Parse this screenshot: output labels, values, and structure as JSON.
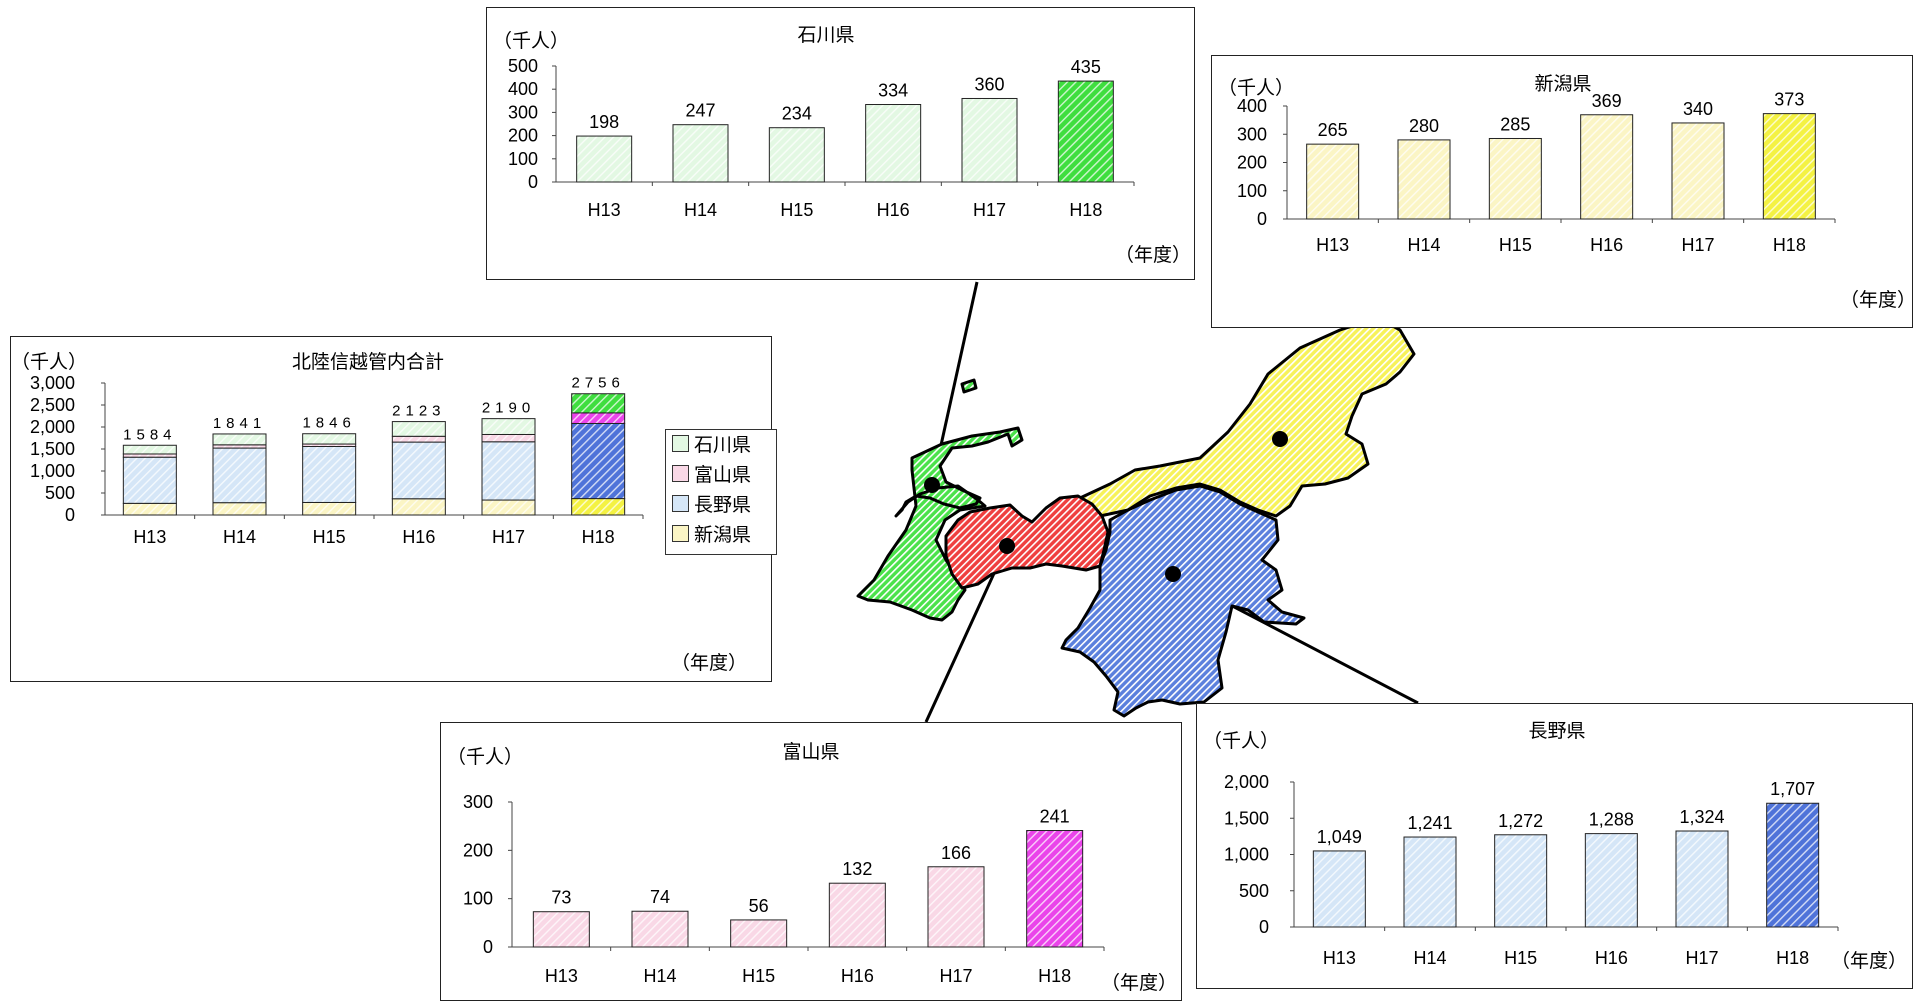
{
  "colors": {
    "ishikawa": "#47e047",
    "toyama": "#ef3f3f",
    "nagano": "#5b80dd",
    "niigata": "#f7f25a",
    "ishikawa_light": "#e3f8e3",
    "toyama_light": "#f9d8e6",
    "nagano_light": "#d5e6f7",
    "niigata_light": "#fbf5c5",
    "ishikawa_h18": "#3fde3f",
    "toyama_h18": "#ea44ea",
    "nagano_h18": "#4f73d9",
    "niigata_h18": "#f4f243"
  },
  "unit_label": "（千人）",
  "year_label": "（年度）",
  "legend": {
    "items": [
      {
        "label": "石川県",
        "color_key": "ishikawa_light"
      },
      {
        "label": "富山県",
        "color_key": "toyama_light"
      },
      {
        "label": "長野県",
        "color_key": "nagano_light"
      },
      {
        "label": "新潟県",
        "color_key": "niigata_light"
      }
    ]
  },
  "map_labels": [
    "石川県",
    "新潟県",
    "富山県",
    "長野県"
  ],
  "chart_data": [
    {
      "id": "total",
      "type": "bar",
      "stacked": true,
      "title": "北陸信越管内合計",
      "ylabel": "（千人）",
      "xlabel": "（年度）",
      "categories": [
        "H13",
        "H14",
        "H15",
        "H16",
        "H17",
        "H18"
      ],
      "series": [
        {
          "name": "新潟県",
          "values": [
            265,
            280,
            285,
            369,
            340,
            373
          ]
        },
        {
          "name": "長野県",
          "values": [
            1049,
            1241,
            1272,
            1288,
            1324,
            1707
          ]
        },
        {
          "name": "富山県",
          "values": [
            73,
            74,
            56,
            132,
            166,
            241
          ]
        },
        {
          "name": "石川県",
          "values": [
            198,
            247,
            234,
            334,
            360,
            435
          ]
        }
      ],
      "totals": [
        "1584",
        "1841",
        "1846",
        "2123",
        "2190",
        "2756"
      ],
      "yticks": [
        "0",
        "500",
        "1,000",
        "1,500",
        "2,000",
        "2,500",
        "3,000"
      ],
      "ylim": [
        0,
        3000
      ],
      "legend_position": "right"
    },
    {
      "id": "ishikawa",
      "type": "bar",
      "title": "石川県",
      "ylabel": "（千人）",
      "xlabel": "（年度）",
      "categories": [
        "H13",
        "H14",
        "H15",
        "H16",
        "H17",
        "H18"
      ],
      "values": [
        198,
        247,
        234,
        334,
        360,
        435
      ],
      "data_labels": [
        "198",
        "247",
        "234",
        "334",
        "360",
        "435"
      ],
      "yticks": [
        "0",
        "100",
        "200",
        "300",
        "400",
        "500"
      ],
      "ylim": [
        0,
        500
      ]
    },
    {
      "id": "niigata",
      "type": "bar",
      "title": "新潟県",
      "ylabel": "（千人）",
      "xlabel": "（年度）",
      "categories": [
        "H13",
        "H14",
        "H15",
        "H16",
        "H17",
        "H18"
      ],
      "values": [
        265,
        280,
        285,
        369,
        340,
        373
      ],
      "data_labels": [
        "265",
        "280",
        "285",
        "369",
        "340",
        "373"
      ],
      "yticks": [
        "0",
        "100",
        "200",
        "300",
        "400"
      ],
      "ylim": [
        0,
        400
      ]
    },
    {
      "id": "toyama",
      "type": "bar",
      "title": "富山県",
      "ylabel": "（千人）",
      "xlabel": "（年度）",
      "categories": [
        "H13",
        "H14",
        "H15",
        "H16",
        "H17",
        "H18"
      ],
      "values": [
        73,
        74,
        56,
        132,
        166,
        241
      ],
      "data_labels": [
        "73",
        "74",
        "56",
        "132",
        "166",
        "241"
      ],
      "yticks": [
        "0",
        "100",
        "200",
        "300"
      ],
      "ylim": [
        0,
        300
      ]
    },
    {
      "id": "nagano",
      "type": "bar",
      "title": "長野県",
      "ylabel": "（千人）",
      "xlabel": "（年度）",
      "categories": [
        "H13",
        "H14",
        "H15",
        "H16",
        "H17",
        "H18"
      ],
      "values": [
        1049,
        1241,
        1272,
        1288,
        1324,
        1707
      ],
      "data_labels": [
        "1,049",
        "1,241",
        "1,272",
        "1,288",
        "1,324",
        "1,707"
      ],
      "yticks": [
        "0",
        "500",
        "1,000",
        "1,500",
        "2,000"
      ],
      "ylim": [
        0,
        2000
      ]
    }
  ]
}
